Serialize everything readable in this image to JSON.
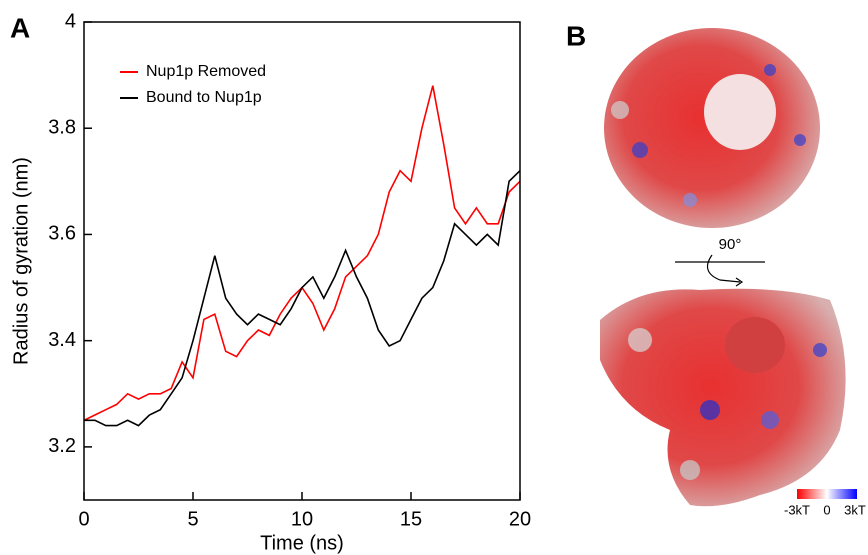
{
  "chart_data": {
    "type": "line",
    "xlabel": "Time (ns)",
    "ylabel": "Radius of gyration (nm)",
    "x": [
      0,
      0.5,
      1,
      1.5,
      2,
      2.5,
      3,
      3.5,
      4,
      4.5,
      5,
      5.5,
      6,
      6.5,
      7,
      7.5,
      8,
      8.5,
      9,
      9.5,
      10,
      10.5,
      11,
      11.5,
      12,
      12.5,
      13,
      13.5,
      14,
      14.5,
      15,
      15.5,
      16,
      16.5,
      17,
      17.5,
      18,
      18.5,
      19,
      19.5,
      20
    ],
    "series": [
      {
        "name": "Nup1p Removed",
        "color": "#ff0000",
        "values": [
          3.25,
          3.26,
          3.27,
          3.28,
          3.3,
          3.29,
          3.3,
          3.3,
          3.31,
          3.36,
          3.33,
          3.44,
          3.45,
          3.38,
          3.37,
          3.4,
          3.42,
          3.41,
          3.45,
          3.48,
          3.5,
          3.47,
          3.42,
          3.46,
          3.52,
          3.54,
          3.56,
          3.6,
          3.68,
          3.72,
          3.7,
          3.8,
          3.88,
          3.77,
          3.65,
          3.62,
          3.65,
          3.62,
          3.62,
          3.68,
          3.7
        ]
      },
      {
        "name": "Bound to Nup1p",
        "color": "#000000",
        "values": [
          3.25,
          3.25,
          3.24,
          3.24,
          3.25,
          3.24,
          3.26,
          3.27,
          3.3,
          3.33,
          3.4,
          3.48,
          3.56,
          3.48,
          3.45,
          3.43,
          3.45,
          3.44,
          3.43,
          3.46,
          3.5,
          3.52,
          3.48,
          3.52,
          3.57,
          3.52,
          3.48,
          3.42,
          3.39,
          3.4,
          3.44,
          3.48,
          3.5,
          3.55,
          3.62,
          3.6,
          3.58,
          3.6,
          3.58,
          3.7,
          3.72
        ]
      }
    ],
    "xlim": [
      0,
      20
    ],
    "xticks": [
      0,
      5,
      10,
      15,
      20
    ],
    "ylim": [
      3.1,
      4.0
    ],
    "yticks": [
      3.2,
      3.4,
      3.6,
      3.8,
      4
    ],
    "legend": "upper left",
    "grid": false
  },
  "panel_labels": [
    "A",
    "B"
  ],
  "rotation_label": "90°",
  "colorbar_labels": [
    "-3kT",
    "0",
    "3kT"
  ]
}
